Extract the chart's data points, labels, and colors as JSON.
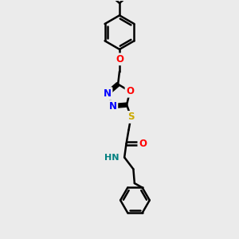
{
  "bg_color": "#ebebeb",
  "line_color": "#000000",
  "bond_width": 1.8,
  "atom_colors": {
    "O": "#ff0000",
    "N": "#0000ff",
    "S": "#ccaa00",
    "N_teal": "#008080"
  },
  "figsize": [
    3.0,
    3.0
  ],
  "dpi": 100
}
